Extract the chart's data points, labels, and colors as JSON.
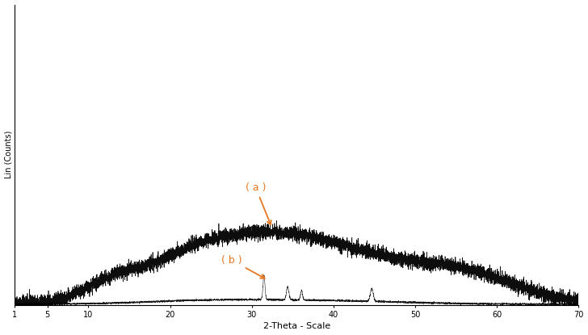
{
  "title": "",
  "xlabel": "2-Theta - Scale",
  "ylabel": "Lin (Counts)",
  "xlim": [
    1,
    70
  ],
  "ylim": [
    0,
    1.0
  ],
  "xticks": [
    1,
    5,
    10,
    20,
    30,
    40,
    50,
    60,
    70
  ],
  "xtick_labels": [
    "1",
    "5",
    "10",
    "20",
    "30",
    "40",
    "50",
    "60",
    "70"
  ],
  "annotation_a_text": "( a )",
  "annotation_b_text": "( b )",
  "annotation_color": "#E87722",
  "line_color": "#000000",
  "background_color": "#ffffff",
  "curve_a_max_height": 0.28,
  "curve_b_max_height": 0.1,
  "seed": 42
}
